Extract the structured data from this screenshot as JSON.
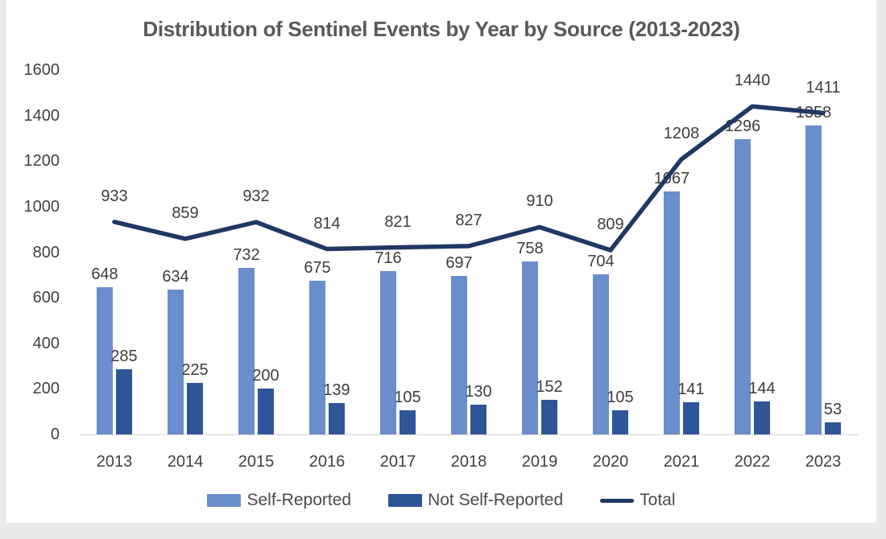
{
  "chart": {
    "title": "Distribution of Sentinel Events by Year by Source (2013-2023)"
  },
  "chart_data": {
    "type": "bar+line combo",
    "title": "Distribution of Sentinel Events by Year by Source (2013-2023)",
    "categories": [
      "2013",
      "2014",
      "2015",
      "2016",
      "2017",
      "2018",
      "2019",
      "2020",
      "2021",
      "2022",
      "2023"
    ],
    "series": [
      {
        "name": "Self-Reported",
        "type": "bar",
        "color": "#6A8DCB",
        "values": [
          648,
          634,
          732,
          675,
          716,
          697,
          758,
          704,
          1067,
          1296,
          1358
        ]
      },
      {
        "name": "Not Self-Reported",
        "type": "bar",
        "color": "#2E5597",
        "values": [
          285,
          225,
          200,
          139,
          105,
          130,
          152,
          105,
          141,
          144,
          53
        ]
      },
      {
        "name": "Total",
        "type": "line",
        "color": "#1F3864",
        "values": [
          933,
          859,
          932,
          814,
          821,
          827,
          910,
          809,
          1208,
          1440,
          1411
        ]
      }
    ],
    "xlabel": "",
    "ylabel": "",
    "ylim": [
      0,
      1600
    ],
    "ytick_step": 200,
    "grid": false,
    "data_labels": true,
    "legend_position": "bottom",
    "colors": {
      "title_text": "#595959",
      "axis_text": "#404040",
      "label_text": "#3D3D3D",
      "baseline": "#D6D6D6",
      "plot_background": "#FFFFFF",
      "page_background": "#ECEAE8"
    }
  }
}
